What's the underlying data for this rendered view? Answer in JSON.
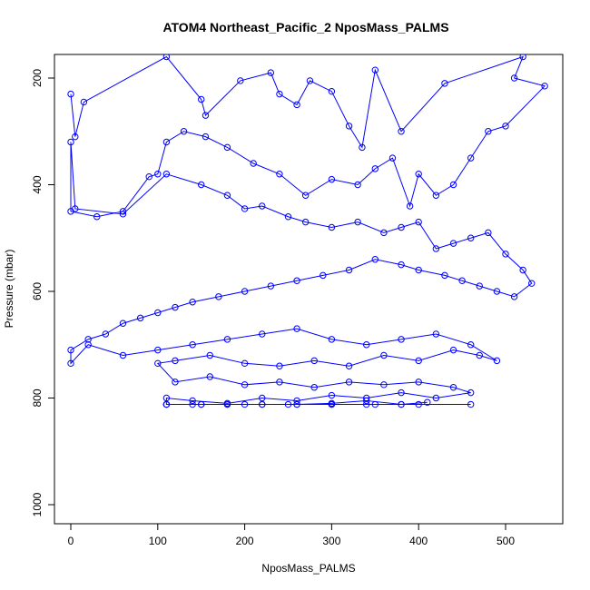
{
  "chart_data": {
    "type": "scatter",
    "title": "ATOM4 Northeast_Pacific_2 NposMass_PALMS",
    "xlabel": "NposMass_PALMS",
    "ylabel": "Pressure (mbar)",
    "xlim": [
      0,
      540
    ],
    "ylim": [
      1030,
      158
    ],
    "y_axis_reversed": true,
    "x_ticks": [
      0,
      100,
      200,
      300,
      400,
      500
    ],
    "y_ticks": [
      200,
      400,
      600,
      800,
      1000
    ],
    "grid": false,
    "color": "#0000ff",
    "series": [
      {
        "x": [
          0,
          5,
          15,
          110,
          150,
          155,
          195,
          230,
          240,
          260,
          275,
          300,
          320,
          335,
          350,
          380,
          430,
          520,
          510,
          545,
          500,
          480,
          460,
          440,
          420,
          400,
          390,
          370,
          350,
          330,
          300,
          270,
          240,
          210,
          180,
          155,
          130,
          110,
          100,
          90,
          60,
          30,
          0,
          0,
          5,
          60,
          110,
          150,
          180,
          200,
          220,
          250,
          270,
          300,
          330,
          360,
          380,
          400,
          420,
          440,
          460,
          480,
          500,
          520,
          530,
          510,
          490,
          470,
          450,
          430,
          400,
          380,
          350,
          320,
          290,
          260,
          230,
          200,
          170,
          140,
          120,
          100,
          80,
          60,
          40,
          20,
          0,
          0,
          20,
          60,
          100,
          140,
          180,
          220,
          260,
          300,
          340,
          380,
          420,
          460,
          490,
          470,
          440,
          400,
          360,
          320,
          280,
          240,
          200,
          160,
          120,
          100,
          120,
          160,
          200,
          240,
          280,
          320,
          360,
          400,
          440,
          460,
          420,
          380,
          340,
          300,
          260,
          220,
          180,
          140,
          110,
          110,
          140,
          180,
          220,
          260,
          300,
          340,
          380,
          410,
          380,
          340,
          300,
          260,
          220,
          180,
          150,
          110,
          110,
          150,
          200,
          250,
          300,
          350,
          400,
          460
        ],
        "y": [
          230,
          310,
          245,
          160,
          240,
          270,
          205,
          190,
          230,
          250,
          205,
          225,
          290,
          330,
          185,
          300,
          210,
          160,
          200,
          215,
          290,
          300,
          350,
          400,
          420,
          380,
          440,
          350,
          370,
          400,
          390,
          420,
          380,
          360,
          330,
          310,
          300,
          320,
          380,
          385,
          450,
          460,
          450,
          320,
          445,
          455,
          380,
          400,
          420,
          445,
          440,
          460,
          470,
          480,
          470,
          490,
          480,
          470,
          520,
          510,
          500,
          490,
          530,
          560,
          585,
          610,
          600,
          590,
          580,
          570,
          560,
          550,
          540,
          560,
          570,
          580,
          590,
          600,
          610,
          620,
          630,
          640,
          650,
          660,
          680,
          690,
          710,
          735,
          700,
          720,
          710,
          700,
          690,
          680,
          670,
          690,
          700,
          690,
          680,
          700,
          730,
          720,
          710,
          730,
          720,
          740,
          730,
          740,
          735,
          720,
          730,
          735,
          770,
          760,
          775,
          770,
          780,
          770,
          775,
          770,
          780,
          790,
          800,
          790,
          800,
          795,
          805,
          800,
          810,
          805,
          800,
          812,
          812,
          812,
          812,
          812,
          812,
          812,
          812,
          808,
          812,
          805,
          810,
          812,
          812,
          812,
          812,
          812,
          812,
          812,
          812,
          812,
          812,
          812,
          812,
          812
        ]
      }
    ]
  }
}
